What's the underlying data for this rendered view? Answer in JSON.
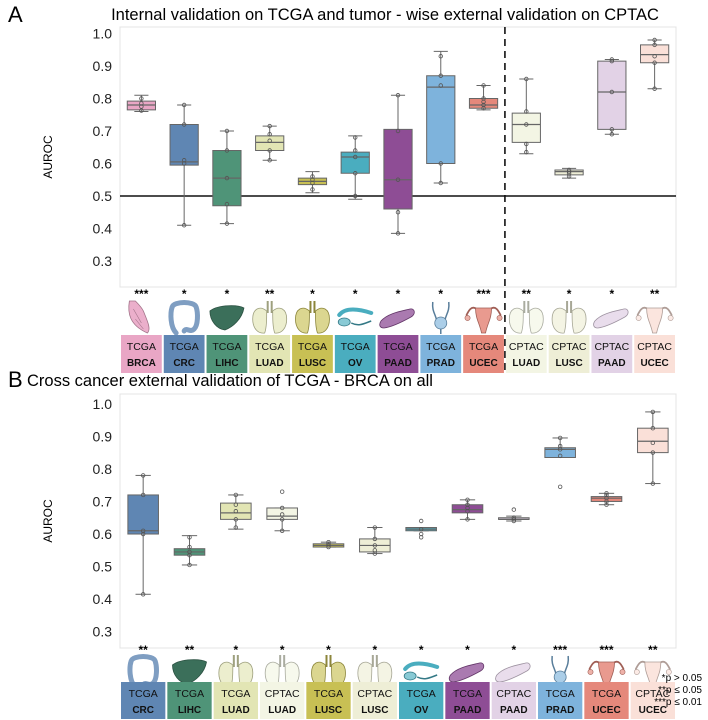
{
  "panels": [
    {
      "letter": "A",
      "title": "Internal validation on TCGA and tumor - wise external validation on CPTAC"
    },
    {
      "letter": "B",
      "title": "Cross cancer external validation of TCGA - BRCA on all"
    }
  ],
  "legend": {
    "items": [
      {
        "marker": "*",
        "label": "p > 0.05"
      },
      {
        "marker": "**",
        "label": "p ≤ 0.05"
      },
      {
        "marker": "***",
        "label": "p ≤ 0.01"
      }
    ]
  },
  "chart_data": [
    {
      "type": "box",
      "title": "Internal validation on TCGA and tumor - wise external validation on CPTAC",
      "ylabel": "AUROC",
      "ylim": [
        0.22,
        1.02
      ],
      "yticks": [
        "0.3",
        "0.4",
        "0.5",
        "0.6",
        "0.7",
        "0.8",
        "0.9",
        "1.0"
      ],
      "reference_line": 0.5,
      "divider_after_index": 8,
      "categories": [
        {
          "cohort": "TCGA",
          "cancer": "BRCA",
          "organ": "breast",
          "color": "#e9a6c5",
          "stats": [
            0.76,
            0.765,
            0.78,
            0.792,
            0.81
          ],
          "points": [
            0.763,
            0.775,
            0.785,
            0.8
          ],
          "sig": "***"
        },
        {
          "cohort": "TCGA",
          "cancer": "CRC",
          "organ": "colon",
          "color": "#5f86b3",
          "stats": [
            0.41,
            0.595,
            0.605,
            0.72,
            0.78
          ],
          "points": [
            0.41,
            0.6,
            0.61,
            0.72,
            0.78
          ],
          "sig": "*"
        },
        {
          "cohort": "TCGA",
          "cancer": "LIHC",
          "organ": "liver",
          "color": "#4f9478",
          "stats": [
            0.415,
            0.47,
            0.555,
            0.64,
            0.7
          ],
          "points": [
            0.415,
            0.475,
            0.555,
            0.64,
            0.7
          ],
          "sig": "*"
        },
        {
          "cohort": "TCGA",
          "cancer": "LUAD",
          "organ": "lung",
          "color": "#e2e5b4",
          "stats": [
            0.61,
            0.64,
            0.665,
            0.685,
            0.715
          ],
          "points": [
            0.61,
            0.64,
            0.67,
            0.69,
            0.715
          ],
          "sig": "**"
        },
        {
          "cohort": "TCGA",
          "cancer": "LUSC",
          "organ": "lung",
          "color": "#c8c054",
          "stats": [
            0.51,
            0.535,
            0.545,
            0.555,
            0.575
          ],
          "points": [
            0.52,
            0.54,
            0.55,
            0.56
          ],
          "sig": "*"
        },
        {
          "cohort": "TCGA",
          "cancer": "OV",
          "organ": "ovary",
          "color": "#4aadbf",
          "stats": [
            0.49,
            0.57,
            0.62,
            0.635,
            0.685
          ],
          "points": [
            0.5,
            0.57,
            0.62,
            0.64,
            0.68
          ],
          "sig": "*"
        },
        {
          "cohort": "TCGA",
          "cancer": "PAAD",
          "organ": "pancreas",
          "color": "#8e4d95",
          "stats": [
            0.385,
            0.46,
            0.55,
            0.705,
            0.81
          ],
          "points": [
            0.385,
            0.45,
            0.55,
            0.7,
            0.81
          ],
          "sig": "*"
        },
        {
          "cohort": "TCGA",
          "cancer": "PRAD",
          "organ": "prostate",
          "color": "#7eb3dc",
          "stats": [
            0.54,
            0.6,
            0.835,
            0.87,
            0.945
          ],
          "points": [
            0.54,
            0.6,
            0.84,
            0.87,
            0.93
          ],
          "sig": "*"
        },
        {
          "cohort": "TCGA",
          "cancer": "UCEC",
          "organ": "uterus",
          "color": "#e5887b",
          "stats": [
            0.765,
            0.77,
            0.78,
            0.8,
            0.84
          ],
          "points": [
            0.77,
            0.78,
            0.79,
            0.8,
            0.84
          ],
          "sig": "***"
        },
        {
          "cohort": "CPTAC",
          "cancer": "LUAD",
          "organ": "lung",
          "color": "#f3f5e4",
          "stats": [
            0.63,
            0.665,
            0.72,
            0.755,
            0.86
          ],
          "points": [
            0.635,
            0.66,
            0.72,
            0.76,
            0.86
          ],
          "sig": "**"
        },
        {
          "cohort": "CPTAC",
          "cancer": "LUSC",
          "organ": "lung",
          "color": "#eeeed6",
          "stats": [
            0.555,
            0.565,
            0.575,
            0.58,
            0.585
          ],
          "points": [
            0.56,
            0.57,
            0.575,
            0.58
          ],
          "sig": "*"
        },
        {
          "cohort": "CPTAC",
          "cancer": "PAAD",
          "organ": "pancreas",
          "color": "#e2d2e6",
          "stats": [
            0.69,
            0.705,
            0.82,
            0.915,
            0.92
          ],
          "points": [
            0.69,
            0.705,
            0.82,
            0.915,
            0.92
          ],
          "sig": "*"
        },
        {
          "cohort": "CPTAC",
          "cancer": "UCEC",
          "organ": "uterus",
          "color": "#fae0d8",
          "stats": [
            0.83,
            0.91,
            0.935,
            0.965,
            0.98
          ],
          "points": [
            0.83,
            0.91,
            0.93,
            0.965,
            0.98
          ],
          "sig": "**"
        }
      ]
    },
    {
      "type": "box",
      "title": "Cross cancer external validation of TCGA - BRCA on all",
      "ylabel": "AUROC",
      "ylim": [
        0.25,
        1.03
      ],
      "yticks": [
        "0.3",
        "0.4",
        "0.5",
        "0.6",
        "0.7",
        "0.8",
        "0.9",
        "1.0"
      ],
      "categories": [
        {
          "cohort": "TCGA",
          "cancer": "CRC",
          "organ": "colon",
          "color": "#5f86b3",
          "stats": [
            0.415,
            0.6,
            0.61,
            0.72,
            0.78
          ],
          "points": [
            0.415,
            0.6,
            0.61,
            0.72,
            0.78
          ],
          "sig": "**"
        },
        {
          "cohort": "TCGA",
          "cancer": "LIHC",
          "organ": "liver",
          "color": "#4f9478",
          "stats": [
            0.505,
            0.535,
            0.545,
            0.555,
            0.595
          ],
          "points": [
            0.505,
            0.535,
            0.545,
            0.56,
            0.59
          ],
          "sig": "**"
        },
        {
          "cohort": "TCGA",
          "cancer": "LUAD",
          "organ": "lung",
          "color": "#e2e5b4",
          "stats": [
            0.615,
            0.645,
            0.665,
            0.695,
            0.72
          ],
          "points": [
            0.62,
            0.645,
            0.67,
            0.69,
            0.72
          ],
          "sig": "*"
        },
        {
          "cohort": "CPTAC",
          "cancer": "LUAD",
          "organ": "lung",
          "color": "#f3f5e4",
          "stats": [
            0.61,
            0.645,
            0.655,
            0.68,
            0.68
          ],
          "points": [
            0.61,
            0.645,
            0.66,
            0.68,
            0.73
          ],
          "sig": "*"
        },
        {
          "cohort": "TCGA",
          "cancer": "LUSC",
          "organ": "lung",
          "color": "#c8c054",
          "stats": [
            0.56,
            0.56,
            0.565,
            0.57,
            0.575
          ],
          "points": [
            0.56,
            0.565,
            0.57,
            0.575
          ],
          "sig": "*"
        },
        {
          "cohort": "CPTAC",
          "cancer": "LUSC",
          "organ": "lung",
          "color": "#eeeed6",
          "stats": [
            0.54,
            0.545,
            0.565,
            0.585,
            0.62
          ],
          "points": [
            0.54,
            0.55,
            0.565,
            0.585,
            0.62
          ],
          "sig": "*"
        },
        {
          "cohort": "TCGA",
          "cancer": "OV",
          "organ": "ovary",
          "color": "#4aadbf",
          "stats": [
            0.61,
            0.61,
            0.615,
            0.62,
            0.62
          ],
          "points": [
            0.59,
            0.6,
            0.615,
            0.64
          ],
          "sig": "*"
        },
        {
          "cohort": "TCGA",
          "cancer": "PAAD",
          "organ": "pancreas",
          "color": "#8e4d95",
          "stats": [
            0.645,
            0.665,
            0.675,
            0.69,
            0.705
          ],
          "points": [
            0.645,
            0.67,
            0.68,
            0.69,
            0.705
          ],
          "sig": "*"
        },
        {
          "cohort": "CPTAC",
          "cancer": "PAAD",
          "organ": "pancreas",
          "color": "#e2d2e6",
          "stats": [
            0.64,
            0.645,
            0.645,
            0.65,
            0.655
          ],
          "points": [
            0.64,
            0.645,
            0.65,
            0.675
          ],
          "sig": "*"
        },
        {
          "cohort": "TCGA",
          "cancer": "PRAD",
          "organ": "prostate",
          "color": "#7eb3dc",
          "stats": [
            0.835,
            0.835,
            0.86,
            0.865,
            0.895
          ],
          "points": [
            0.745,
            0.84,
            0.86,
            0.87,
            0.895
          ],
          "sig": "***"
        },
        {
          "cohort": "TCGA",
          "cancer": "UCEC",
          "organ": "uterus",
          "color": "#e5887b",
          "stats": [
            0.69,
            0.7,
            0.71,
            0.715,
            0.725
          ],
          "points": [
            0.69,
            0.7,
            0.71,
            0.72,
            0.725
          ],
          "sig": "***"
        },
        {
          "cohort": "CPTAC",
          "cancer": "UCEC",
          "organ": "uterus",
          "color": "#fae0d8",
          "stats": [
            0.755,
            0.85,
            0.885,
            0.925,
            0.975
          ],
          "points": [
            0.755,
            0.85,
            0.88,
            0.925,
            0.975
          ],
          "sig": "**"
        }
      ]
    }
  ]
}
